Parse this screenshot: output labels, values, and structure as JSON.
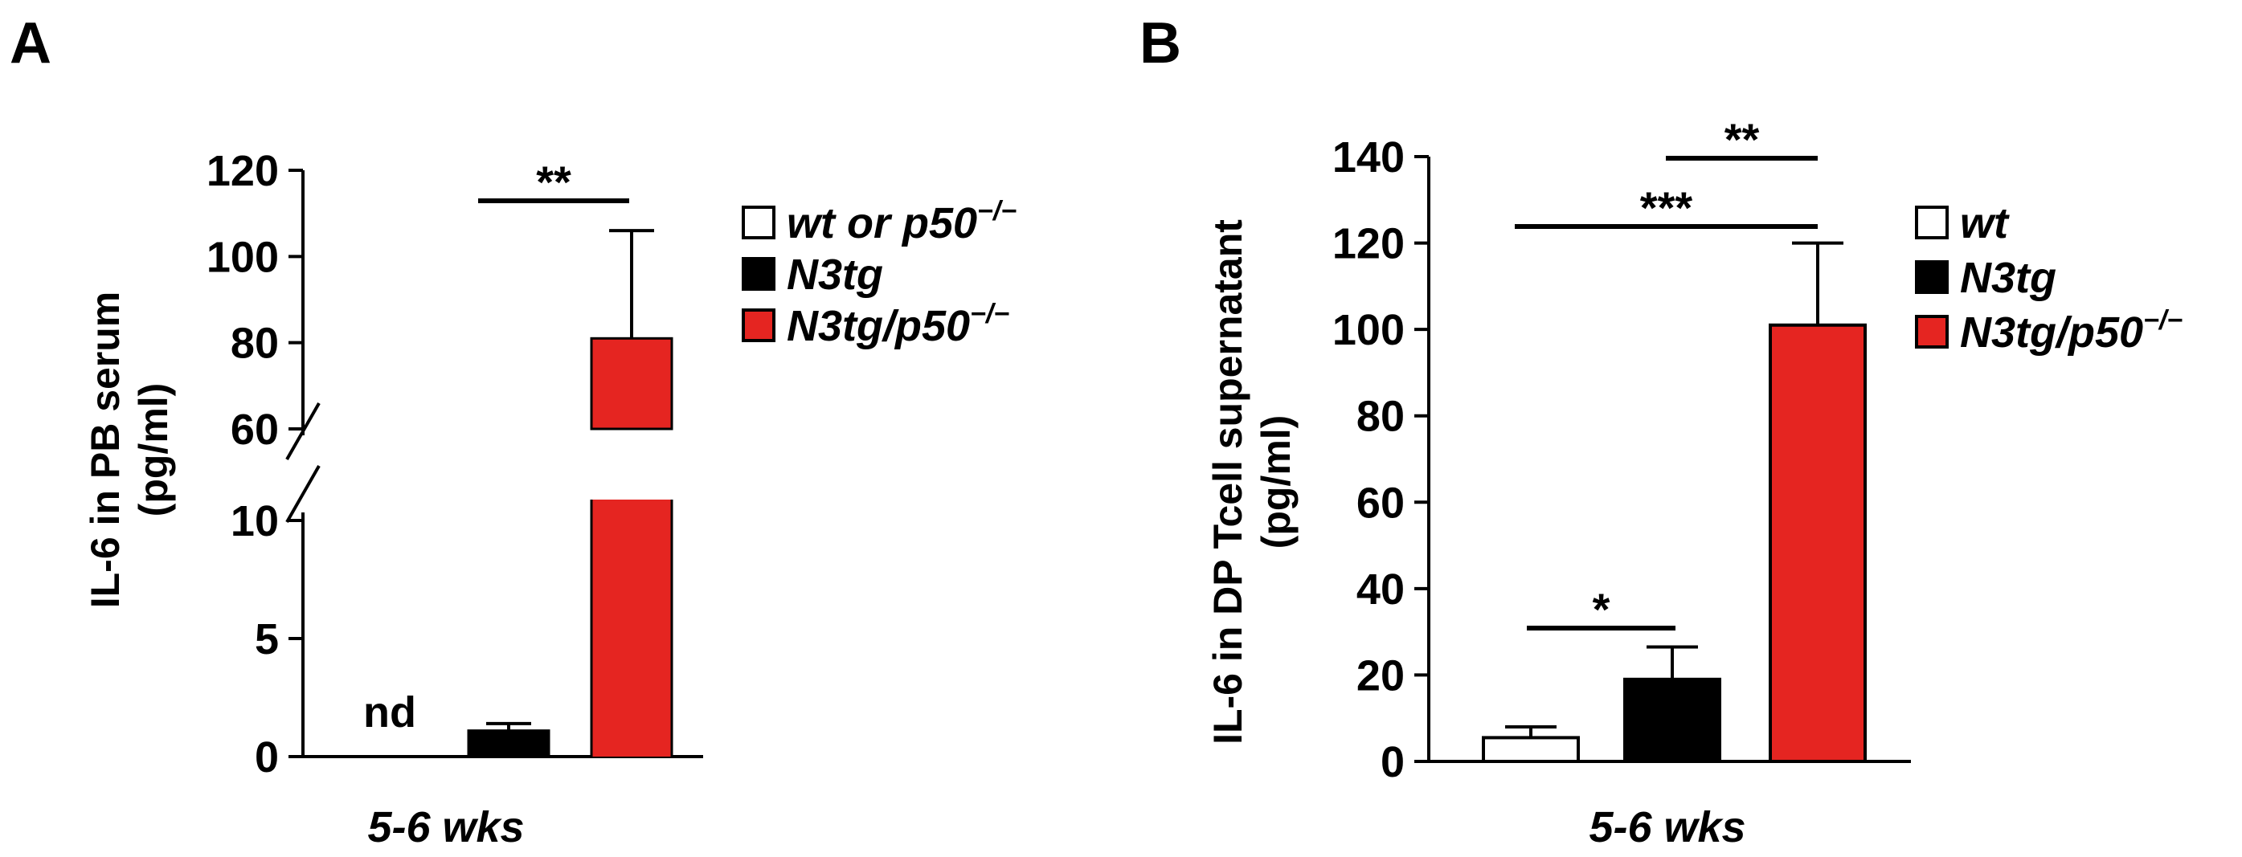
{
  "panels": [
    {
      "letter": "A",
      "ylabel_lines": [
        "IL-6 in PB serum",
        "(pg/ml)"
      ],
      "xlabel": "5-6 wks",
      "legend": [
        "wt or p50−/−",
        "N3tg",
        "N3tg/p50−/−"
      ],
      "annotations": [
        {
          "text": "nd",
          "target": "wt or p50−/−"
        },
        {
          "text": "**",
          "between": [
            "N3tg",
            "N3tg/p50−/−"
          ]
        }
      ]
    },
    {
      "letter": "B",
      "ylabel_lines": [
        "IL-6 in DP Tcell supernatant",
        "(pg/ml)"
      ],
      "xlabel": "5-6 wks",
      "legend": [
        "wt",
        "N3tg",
        "N3tg/p50−/−"
      ],
      "annotations": [
        {
          "text": "*",
          "between": [
            "wt",
            "N3tg"
          ]
        },
        {
          "text": "***",
          "between": [
            "wt",
            "N3tg/p50−/−"
          ]
        },
        {
          "text": "**",
          "between": [
            "N3tg",
            "N3tg/p50−/−"
          ]
        }
      ]
    }
  ],
  "chart_data": [
    {
      "type": "bar",
      "panel": "A",
      "categories": [
        "wt or p50−/−",
        "N3tg",
        "N3tg/p50−/−"
      ],
      "values": [
        null,
        1.1,
        81
      ],
      "errors": [
        null,
        0.3,
        25
      ],
      "colors": [
        "#ffffff",
        "#000000",
        "#e52521"
      ],
      "ylim": [
        0,
        120
      ],
      "broken_axis": {
        "lower": [
          0,
          10
        ],
        "upper": [
          60,
          120
        ]
      },
      "yticks": [
        0,
        5,
        10,
        60,
        80,
        100,
        120
      ],
      "xlabel": "5-6 wks",
      "ylabel": "IL-6 in PB serum (pg/ml)",
      "legend_position": "right"
    },
    {
      "type": "bar",
      "panel": "B",
      "categories": [
        "wt",
        "N3tg",
        "N3tg/p50−/−"
      ],
      "values": [
        5.5,
        19,
        101
      ],
      "errors": [
        2.5,
        7.5,
        19
      ],
      "colors": [
        "#ffffff",
        "#000000",
        "#e52521"
      ],
      "ylim": [
        0,
        140
      ],
      "yticks": [
        0,
        20,
        40,
        60,
        80,
        100,
        120,
        140
      ],
      "xlabel": "5-6 wks",
      "ylabel": "IL-6 in DP Tcell supernatant (pg/ml)",
      "legend_position": "right"
    }
  ]
}
